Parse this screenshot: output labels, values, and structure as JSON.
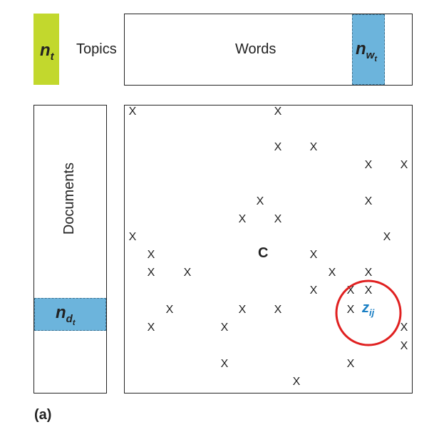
{
  "symbols": {
    "n_t_base": "n",
    "n_t_sub": "t",
    "n_wt_base": "n",
    "n_wt_sub": "w",
    "n_wt_subsub": "t",
    "n_dt_base": "n",
    "n_dt_sub": "d",
    "n_dt_subsub": "t",
    "z_base": "z",
    "z_sub": "ij",
    "c_label": "C"
  },
  "labels": {
    "topics": "Topics",
    "words": "Words",
    "documents": "Documents",
    "caption": "(a)"
  },
  "marks": {
    "x_symbol": "X"
  },
  "colors": {
    "green": "#c2d82d",
    "blue": "#6cb4dc",
    "highlight_circle": "#e02020",
    "z_text": "#1a7fc4"
  }
}
